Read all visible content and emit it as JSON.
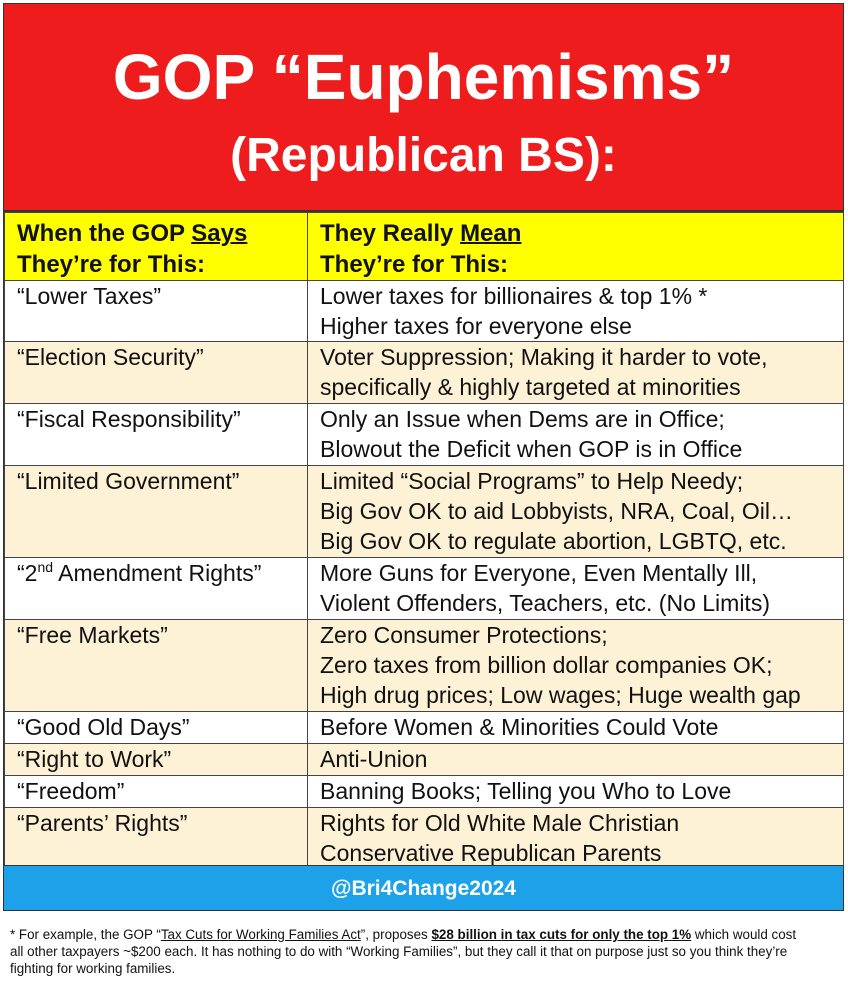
{
  "banner": {
    "title": "GOP “Euphemisms”",
    "subtitle": "(Republican BS):"
  },
  "header": {
    "left_line1_pre": "When the GOP ",
    "left_line1_u": "Says",
    "left_line2": "They’re for This:",
    "right_line1_pre": "They Really ",
    "right_line1_u": "Mean",
    "right_line2": "They’re for This:"
  },
  "rows": [
    {
      "term": "“Lower Taxes”",
      "meaning": [
        "Lower taxes for billionaires & top 1% *",
        "Higher taxes for everyone else"
      ]
    },
    {
      "term": "“Election Security”",
      "meaning": [
        "Voter Suppression; Making it harder to vote,",
        "specifically & highly targeted at minorities"
      ]
    },
    {
      "term": "“Fiscal Responsibility”",
      "meaning": [
        "Only an Issue when Dems are in Office;",
        "Blowout the Deficit when GOP is in Office"
      ]
    },
    {
      "term": "“Limited Government”",
      "meaning": [
        "Limited “Social Programs” to Help Needy;",
        "Big Gov OK to aid Lobbyists, NRA, Coal, Oil…",
        "Big Gov OK to regulate abortion, LGBTQ, etc."
      ]
    },
    {
      "term_pre": "“2",
      "term_sup": "nd",
      "term_post": " Amendment Rights”",
      "meaning": [
        "More Guns for Everyone, Even Mentally Ill,",
        "Violent Offenders, Teachers, etc. (No Limits)"
      ]
    },
    {
      "term": "“Free Markets”",
      "meaning": [
        "Zero Consumer Protections;",
        "Zero taxes from billion dollar companies OK;",
        "High drug prices; Low wages; Huge wealth gap"
      ]
    },
    {
      "term": "“Good Old Days”",
      "meaning": [
        "Before Women & Minorities Could Vote"
      ]
    },
    {
      "term": "“Right to Work”",
      "meaning": [
        "Anti-Union"
      ]
    },
    {
      "term": "“Freedom”",
      "meaning": [
        "Banning Books; Telling you Who to Love"
      ]
    },
    {
      "term": "“Parents’ Rights”",
      "meaning": [
        "Rights for Old White Male Christian",
        "Conservative Republican Parents"
      ]
    }
  ],
  "footer": {
    "handle": "@Bri4Change2024"
  },
  "note": {
    "p1": "* For example, the GOP “",
    "link": "Tax Cuts for Working Families Act",
    "p2": "”, proposes ",
    "bold": "$28 billion in tax cuts for only the top 1%",
    "p3": " which would cost all other taxpayers ~$200 each. It has nothing to do with “Working Families”, but they call it that on purpose just so you think they’re fighting for working families."
  },
  "colors": {
    "banner_red": "#ee1c1c",
    "header_yellow": "#ffff00",
    "stripe_beige": "#fdf1d6",
    "footer_blue": "#1da1e8"
  }
}
